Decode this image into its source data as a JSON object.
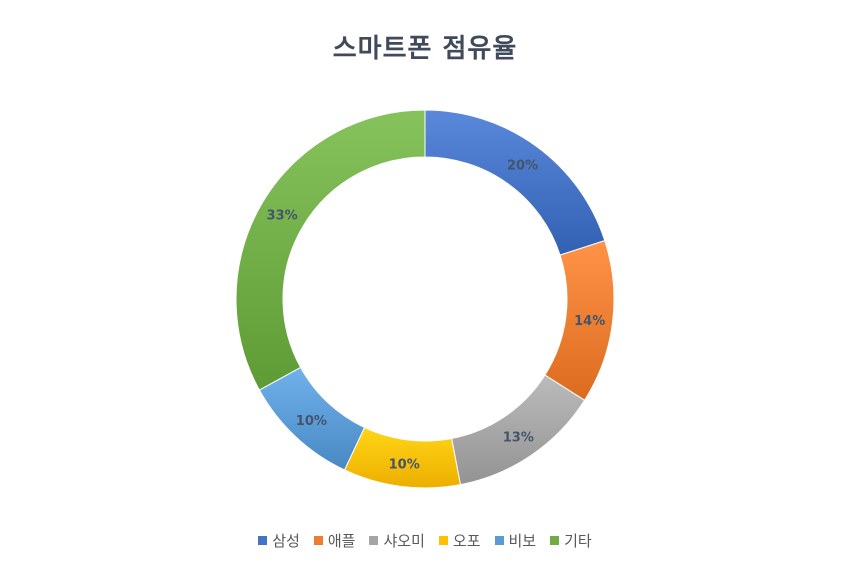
{
  "chart_data": {
    "type": "pie",
    "title": "스마트폰 점유율",
    "categories": [
      "삼성",
      "애플",
      "샤오미",
      "오포",
      "비보",
      "기타"
    ],
    "values": [
      20,
      14,
      13,
      10,
      10,
      33
    ],
    "data_labels": [
      "20%",
      "14%",
      "13%",
      "10%",
      "10%",
      "33%"
    ],
    "donut": true,
    "legend_placement": "bottom",
    "colors": [
      "#4472c4",
      "#ed7d31",
      "#a5a5a5",
      "#ffc000",
      "#5b9bd5",
      "#70ad47"
    ]
  }
}
